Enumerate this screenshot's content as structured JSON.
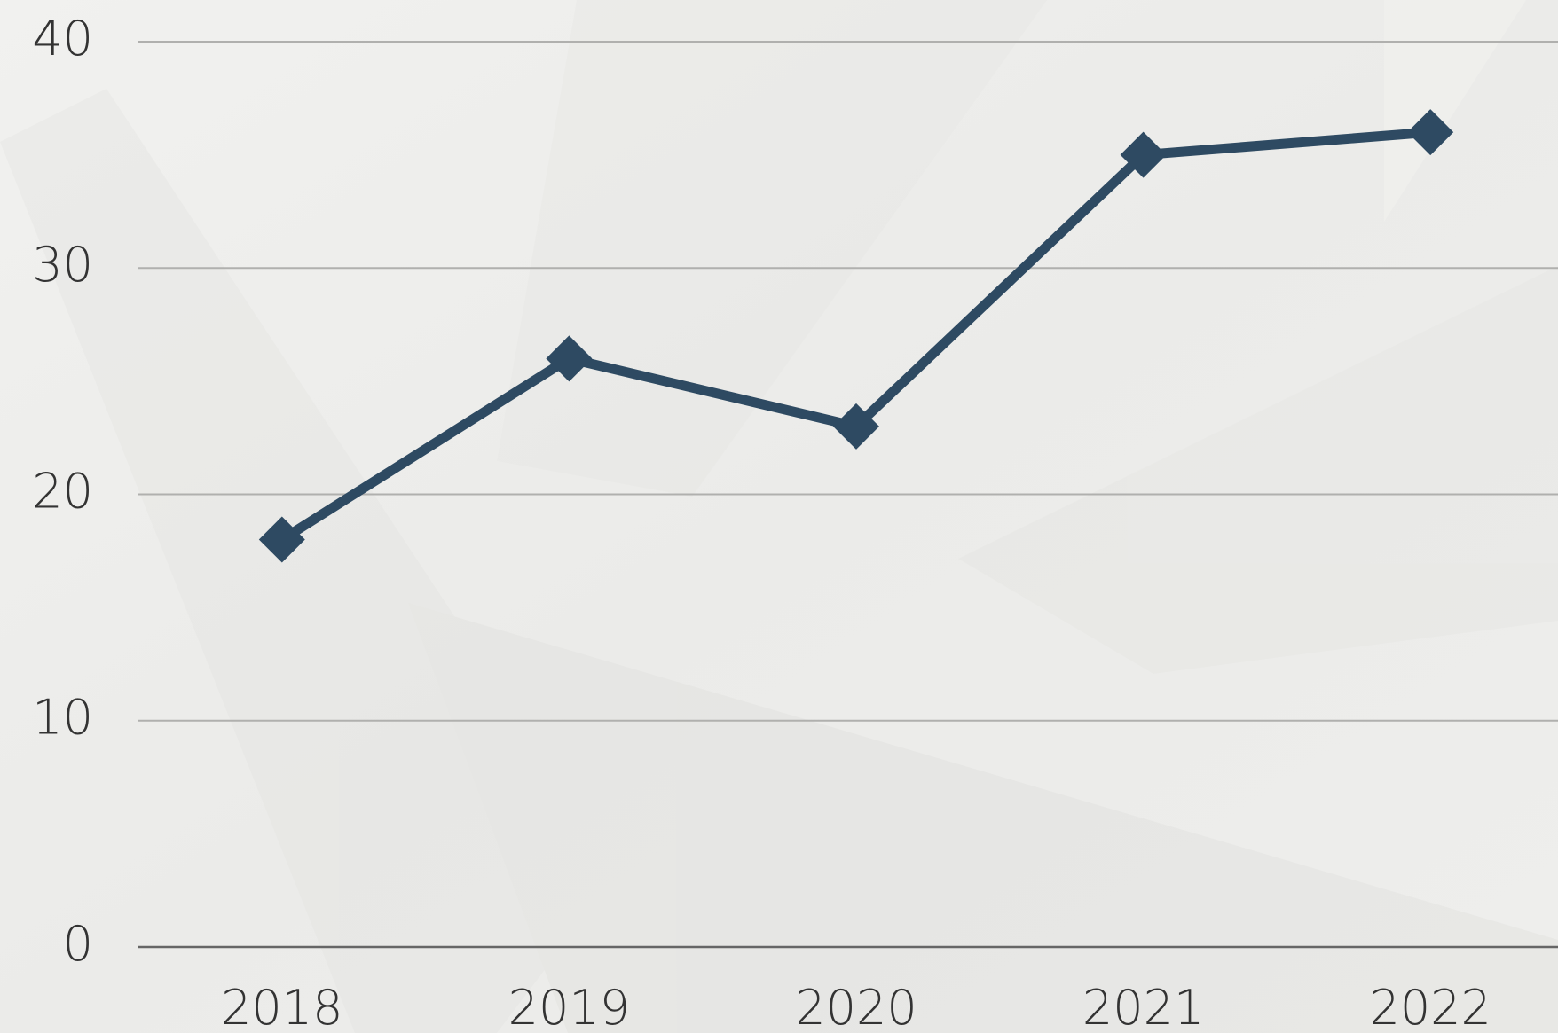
{
  "chart_data": {
    "type": "line",
    "categories": [
      "2018",
      "2019",
      "2020",
      "2021",
      "2022"
    ],
    "series": [
      {
        "color": "#2e4a62",
        "values": [
          18,
          26,
          23,
          35,
          36
        ]
      }
    ],
    "ylim": [
      0,
      40
    ],
    "yticks": [
      0,
      10,
      20,
      30,
      40
    ],
    "grid": true
  }
}
